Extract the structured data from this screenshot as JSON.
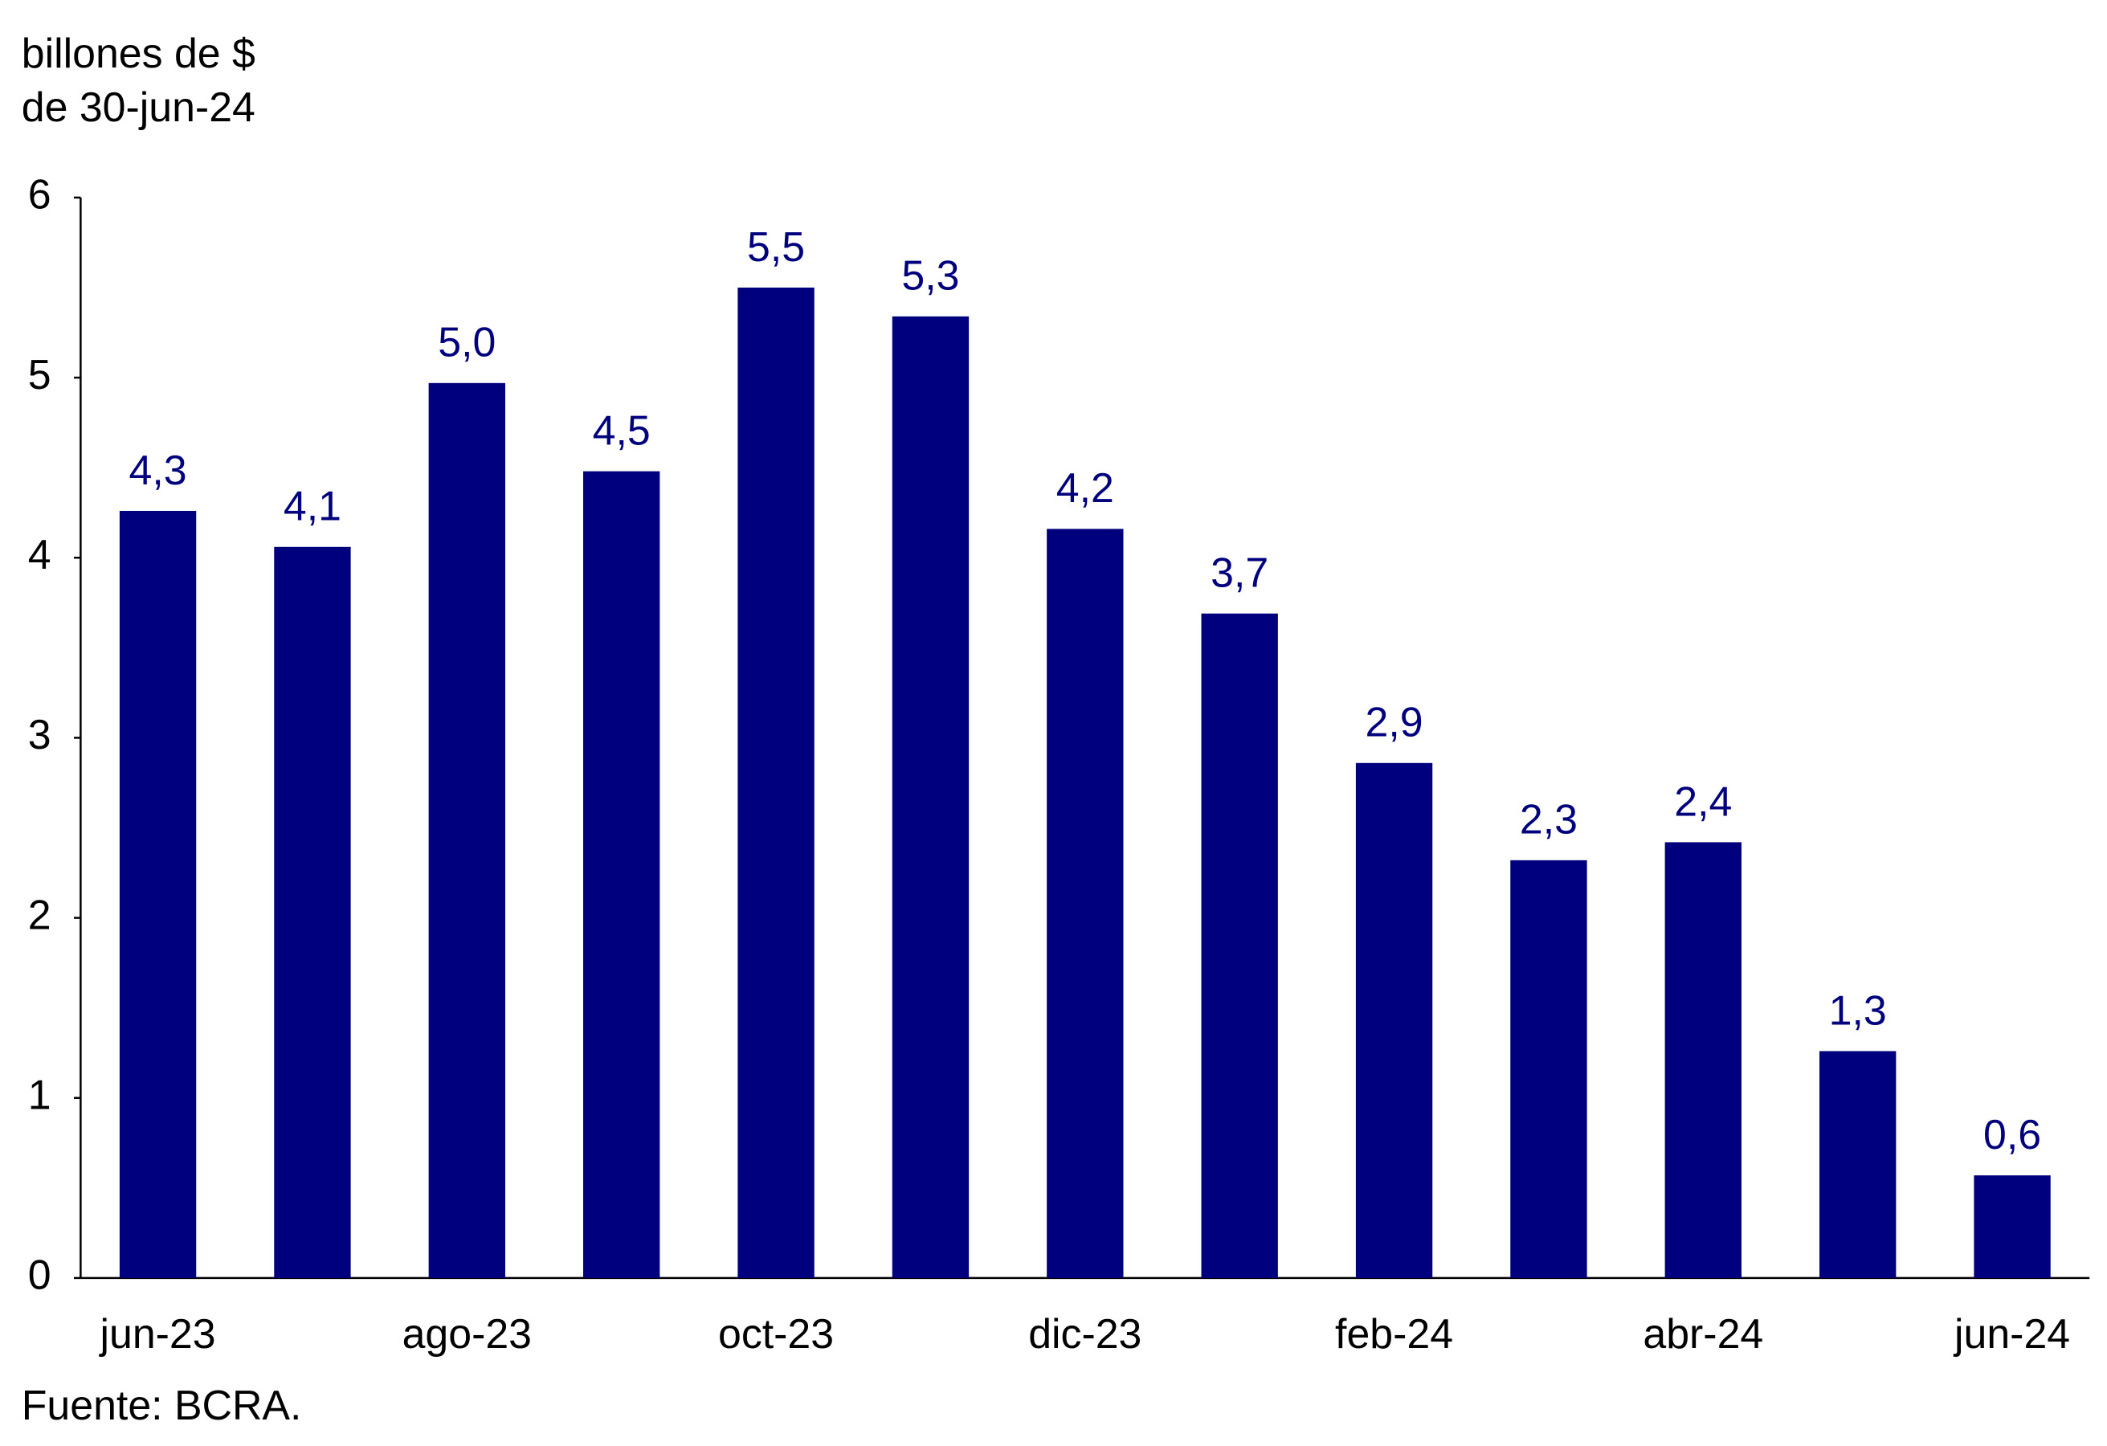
{
  "chart_data": {
    "type": "bar",
    "ylabel": [
      "billones de $",
      "de 30-jun-24"
    ],
    "source": "Fuente: BCRA.",
    "categories": [
      "jun-23",
      null,
      "ago-23",
      null,
      "oct-23",
      null,
      "dic-23",
      null,
      "feb-24",
      null,
      "abr-24",
      null,
      "jun-24"
    ],
    "values": [
      4.26,
      4.06,
      4.97,
      4.48,
      5.5,
      5.34,
      4.16,
      3.69,
      2.86,
      2.32,
      2.42,
      1.26,
      0.57
    ],
    "value_labels": [
      "4,3",
      "4,1",
      "5,0",
      "4,5",
      "5,5",
      "5,3",
      "4,2",
      "3,7",
      "2,9",
      "2,3",
      "2,4",
      "1,3",
      "0,6"
    ],
    "color": "#00007f",
    "ylim": [
      0,
      6
    ],
    "yticks": [
      0,
      1,
      2,
      3,
      4,
      5,
      6
    ],
    "grid": false
  }
}
